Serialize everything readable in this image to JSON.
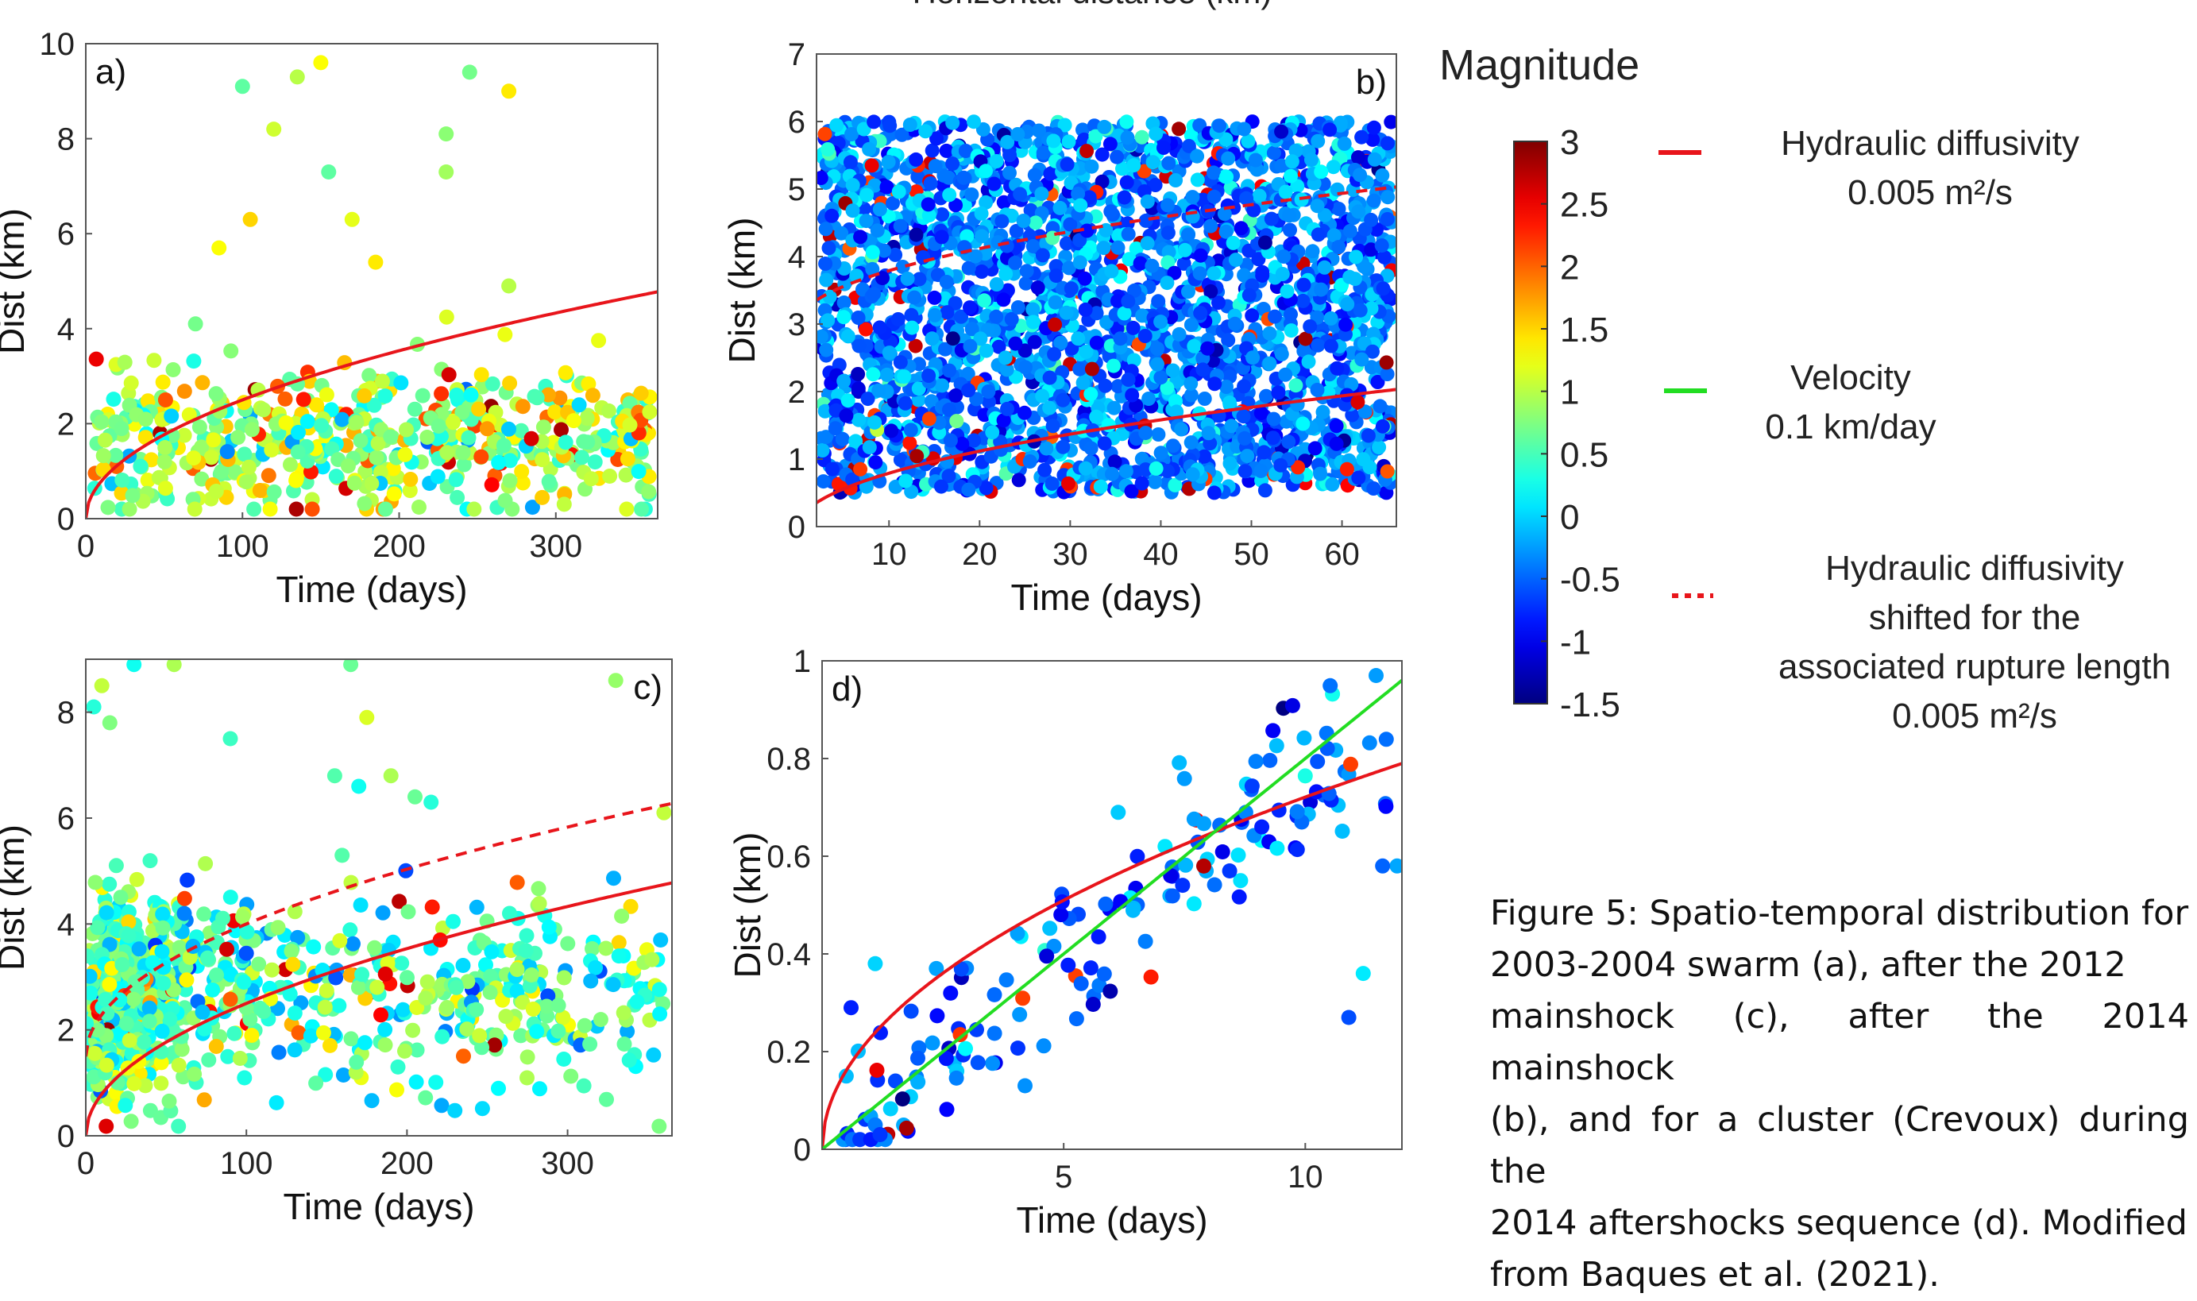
{
  "cut_title": "Horizontal distance (km)",
  "legend": {
    "title": "Magnitude",
    "colorbar_ticks": [
      "3",
      "2.5",
      "2",
      "1.5",
      "1",
      "0.5",
      "0",
      "-0.5",
      "-1",
      "-1.5"
    ],
    "entries": [
      {
        "lines": [
          "Hydraulic diffusivity",
          "0.005 m²/s"
        ],
        "style": "solid",
        "color": "#e8151b"
      },
      {
        "lines": [
          "Velocity",
          "0.1 km/day"
        ],
        "style": "solid",
        "color": "#22dd22"
      },
      {
        "lines": [
          "Hydraulic diffusivity",
          "shifted for the",
          "associated rupture length",
          "0.005 m²/s"
        ],
        "style": "dotted",
        "color": "#e8151b"
      }
    ]
  },
  "caption": [
    "Figure 5: Spatio-temporal distribution for",
    "2003-2004 swarm (a), after the 2012",
    "mainshock (c), after the 2014 mainshock",
    "(b), and for a cluster (Crevoux) during the",
    "2014 aftershocks sequence (d). Modified",
    "from Baques et al. (2021)."
  ],
  "colors": {
    "diffusivity": "#e8151b",
    "velocity": "#22dd22"
  },
  "chart_data": [
    {
      "id": "a",
      "type": "scatter",
      "panel_label": "a)",
      "xlabel": "Time (days)",
      "ylabel": "Dist (km)",
      "xlim": [
        0,
        365
      ],
      "ylim": [
        0,
        10
      ],
      "xticks": [
        0,
        100,
        200,
        300
      ],
      "yticks": [
        0,
        2,
        4,
        6,
        8,
        10
      ],
      "curves": [
        {
          "kind": "sqrt",
          "coef": 0.25,
          "shift": 0,
          "x0": 0,
          "x1": 365,
          "style": "solid"
        }
      ],
      "scatter": {
        "n": 560,
        "seed": 11,
        "x_range": [
          5,
          360
        ],
        "y_center": 1.7,
        "y_spread": 1.3,
        "mag_mean": 0.9,
        "mag_spread": 0.7,
        "outliers": [
          [
            100,
            9.1
          ],
          [
            150,
            9.6
          ],
          [
            135,
            9.3
          ],
          [
            245,
            9.4
          ],
          [
            270,
            9.0
          ],
          [
            120,
            8.2
          ],
          [
            230,
            8.1
          ],
          [
            105,
            6.3
          ],
          [
            170,
            6.3
          ],
          [
            230,
            7.3
          ],
          [
            155,
            7.3
          ],
          [
            85,
            5.7
          ],
          [
            270,
            4.9
          ],
          [
            70,
            4.1
          ],
          [
            185,
            5.4
          ]
        ]
      }
    },
    {
      "id": "b",
      "type": "scatter",
      "panel_label": "b)",
      "xlabel": "Time (days)",
      "ylabel": "Dist (km)",
      "xlim": [
        2,
        66
      ],
      "ylim": [
        0,
        7
      ],
      "xticks": [
        10,
        20,
        30,
        40,
        50,
        60
      ],
      "yticks": [
        0,
        1,
        2,
        3,
        4,
        5,
        6,
        7
      ],
      "curves": [
        {
          "kind": "sqrt",
          "coef": 0.25,
          "shift": 0,
          "x0": 2,
          "x1": 66,
          "style": "solid"
        },
        {
          "kind": "sqrt",
          "coef": 0.25,
          "shift": 3.0,
          "x0": 2,
          "x1": 66,
          "style": "dashed"
        }
      ],
      "scatter": {
        "n": 2600,
        "seed": 23,
        "x_range": [
          2.5,
          65.5
        ],
        "y_center": 3.3,
        "y_spread": 2.7,
        "uniform_y": true,
        "mag_mean": -0.4,
        "mag_spread": 0.5,
        "outliers": []
      }
    },
    {
      "id": "c",
      "type": "scatter",
      "panel_label": "c)",
      "xlabel": "Time (days)",
      "ylabel": "Dist (km)",
      "xlim": [
        0,
        365
      ],
      "ylim": [
        0,
        9
      ],
      "xticks": [
        0,
        100,
        200,
        300
      ],
      "yticks": [
        0,
        2,
        4,
        6,
        8
      ],
      "curves": [
        {
          "kind": "sqrt",
          "coef": 0.25,
          "shift": 0,
          "x0": 0,
          "x1": 365,
          "style": "solid"
        },
        {
          "kind": "sqrt",
          "coef": 0.25,
          "shift": 1.5,
          "x0": 0,
          "x1": 365,
          "style": "dashed"
        }
      ],
      "scatter": {
        "n": 900,
        "seed": 37,
        "x_range": [
          0,
          360
        ],
        "y_center": 2.7,
        "y_spread": 1.6,
        "mag_mean": 0.55,
        "mag_spread": 0.65,
        "cluster_early": true,
        "outliers": [
          [
            30,
            8.9
          ],
          [
            55,
            8.9
          ],
          [
            165,
            8.9
          ],
          [
            5,
            8.1
          ],
          [
            10,
            8.5
          ],
          [
            15,
            7.8
          ],
          [
            90,
            7.5
          ],
          [
            175,
            7.9
          ],
          [
            330,
            8.6
          ],
          [
            155,
            6.8
          ],
          [
            170,
            6.6
          ],
          [
            190,
            6.8
          ],
          [
            205,
            6.4
          ],
          [
            215,
            6.3
          ],
          [
            360,
            6.1
          ]
        ]
      }
    },
    {
      "id": "d",
      "type": "scatter",
      "panel_label": "d)",
      "xlabel": "Time (days)",
      "ylabel": "Dist (km)",
      "xlim": [
        0,
        12
      ],
      "ylim": [
        0,
        1
      ],
      "xticks": [
        5,
        10
      ],
      "yticks": [
        0,
        0.2,
        0.4,
        0.6,
        0.8,
        1
      ],
      "ytick_labels": [
        "0",
        "0.2",
        "0.4",
        "0.6",
        "0.8",
        "1"
      ],
      "curves": [
        {
          "kind": "sqrt",
          "coef": 0.228,
          "shift": 0,
          "x0": 0,
          "x1": 12,
          "style": "solid"
        },
        {
          "kind": "linear",
          "slope": 0.08,
          "x0": 0,
          "x1": 12,
          "style": "solid",
          "color": "velocity"
        }
      ],
      "scatter": {
        "n": 160,
        "seed": 41,
        "x_range": [
          0.3,
          11.8
        ],
        "follow_line": 0.075,
        "y_spread": 0.09,
        "mag_mean": -0.5,
        "mag_spread": 0.5,
        "outliers": [
          [
            0.6,
            0.29
          ],
          [
            0.5,
            0.15
          ],
          [
            1.1,
            0.05
          ],
          [
            1.2,
            0.03
          ],
          [
            1.1,
            0.38
          ],
          [
            4.2,
            0.13
          ],
          [
            10.9,
            0.27
          ],
          [
            11.2,
            0.36
          ],
          [
            11.9,
            0.58
          ],
          [
            11.6,
            0.58
          ],
          [
            9.1,
            0.66
          ]
        ]
      }
    }
  ]
}
